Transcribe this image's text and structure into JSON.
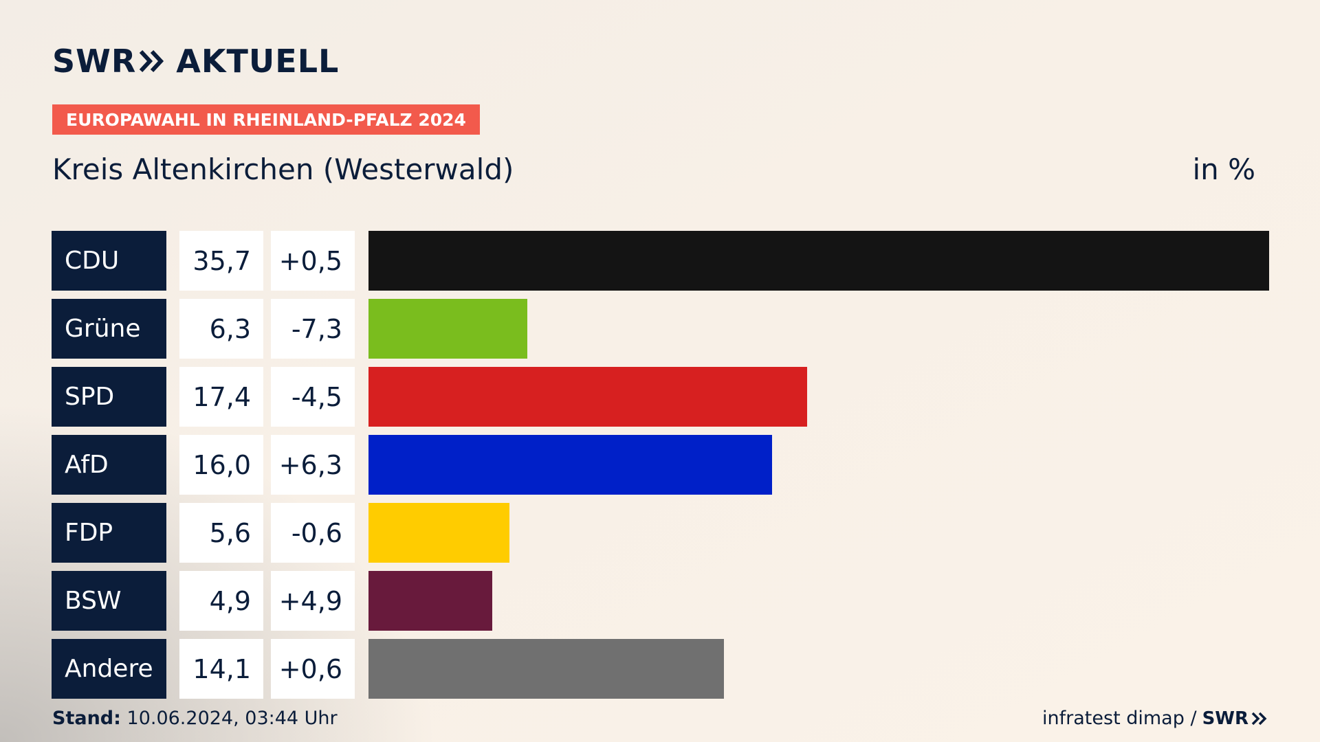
{
  "header": {
    "brand": "SWR",
    "brand_suffix": "AKTUELL",
    "badge": "EUROPAWAHL IN RHEINLAND-PFALZ 2024",
    "region": "Kreis Altenkirchen (Westerwald)",
    "unit": "in %"
  },
  "colors": {
    "navy": "#0b1d3a",
    "badge": "#f25a4c"
  },
  "chart_data": {
    "type": "bar",
    "orientation": "horizontal",
    "categories": [
      "CDU",
      "Grüne",
      "SPD",
      "AfD",
      "FDP",
      "BSW",
      "Andere"
    ],
    "values": [
      35.7,
      6.3,
      17.4,
      16.0,
      5.6,
      4.9,
      14.1
    ],
    "value_labels": [
      "35,7",
      "6,3",
      "17,4",
      "16,0",
      "5,6",
      "4,9",
      "14,1"
    ],
    "changes": [
      0.5,
      -7.3,
      -4.5,
      6.3,
      -0.6,
      4.9,
      0.6
    ],
    "change_labels": [
      "+0,5",
      "-7,3",
      "-4,5",
      "+6,3",
      "-0,6",
      "+4,9",
      "+0,6"
    ],
    "colors": [
      "#141414",
      "#7abd1e",
      "#d72020",
      "#0020c8",
      "#ffcc00",
      "#681a3c",
      "#707070"
    ],
    "grid": false
  },
  "footer": {
    "stand_label": "Stand:",
    "stand_value": "10.06.2024, 03:44 Uhr",
    "source": "infratest dimap /",
    "source_brand": "SWR"
  }
}
